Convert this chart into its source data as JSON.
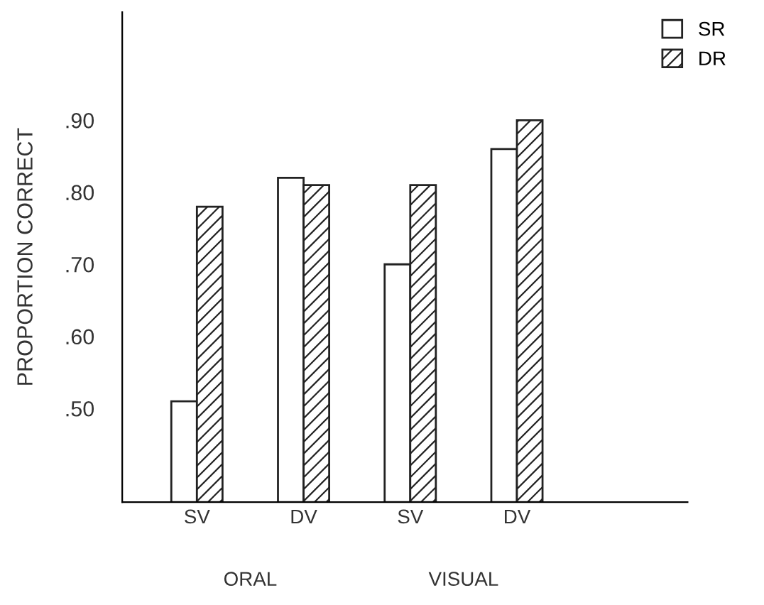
{
  "chart_data": {
    "type": "bar",
    "ylabel": "PROPORTION CORRECT",
    "categories": [
      "SV",
      "DV",
      "SV",
      "DV"
    ],
    "series": [
      {
        "name": "SR",
        "color": "#ffffff",
        "values": [
          0.51,
          0.82,
          0.7,
          0.86
        ]
      },
      {
        "name": "DR",
        "color": "#222222",
        "values": [
          0.78,
          0.81,
          0.81,
          0.9
        ]
      }
    ],
    "ylim": [
      0.37,
      1.05
    ],
    "yticks": [
      {
        "value": 0.5,
        "label": ".50"
      },
      {
        "value": 0.6,
        "label": ".60"
      },
      {
        "value": 0.7,
        "label": ".70"
      },
      {
        "value": 0.8,
        "label": ".80"
      },
      {
        "value": 0.9,
        "label": ".90"
      }
    ],
    "annotations": [
      "ORAL",
      "VISUAL"
    ],
    "legend": "top right",
    "grid": false
  }
}
